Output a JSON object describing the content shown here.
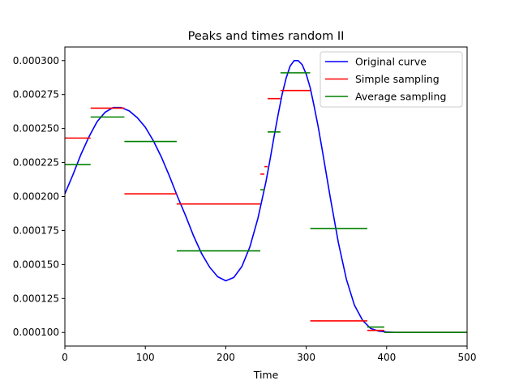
{
  "chart_data": {
    "type": "line",
    "title": "Peaks and times random II",
    "xlabel": "Time",
    "ylabel": "",
    "xlim": [
      0,
      500
    ],
    "ylim": [
      9e-05,
      0.00031
    ],
    "xticks": [
      0,
      100,
      200,
      300,
      400,
      500
    ],
    "xtick_labels": [
      "0",
      "100",
      "200",
      "300",
      "400",
      "500"
    ],
    "yticks": [
      0.0001,
      0.000125,
      0.00015,
      0.000175,
      0.0002,
      0.000225,
      0.00025,
      0.000275,
      0.0003
    ],
    "ytick_labels": [
      "0.000100",
      "0.000125",
      "0.000150",
      "0.000175",
      "0.000200",
      "0.000225",
      "0.000250",
      "0.000275",
      "0.000300"
    ],
    "grid": false,
    "legend_position": "top-right",
    "colors": {
      "original": "#0000ff",
      "simple": "#ff0000",
      "average": "#008000"
    },
    "series": [
      {
        "name": "Original curve",
        "style": "line",
        "x": [
          0,
          10,
          20,
          30,
          40,
          50,
          60,
          70,
          80,
          90,
          100,
          110,
          120,
          130,
          140,
          150,
          160,
          170,
          180,
          190,
          200,
          210,
          220,
          230,
          240,
          250,
          255,
          260,
          265,
          270,
          275,
          280,
          285,
          290,
          295,
          300,
          305,
          310,
          315,
          320,
          330,
          340,
          350,
          360,
          370,
          380,
          390,
          400,
          410,
          420,
          430,
          440,
          450,
          460,
          470,
          480,
          490,
          500
        ],
        "y": [
          0.000202,
          0.000216,
          0.000231,
          0.000244,
          0.000255,
          0.000262,
          0.0002655,
          0.0002655,
          0.000263,
          0.000258,
          0.000251,
          0.000241,
          0.000229,
          0.000215,
          0.0002,
          0.000186,
          0.000171,
          0.000158,
          0.000148,
          0.000141,
          0.000138,
          0.0001405,
          0.0001485,
          0.000163,
          0.000184,
          0.000211,
          0.000227,
          0.000244,
          0.00026,
          0.000275,
          0.000287,
          0.000296,
          0.0003,
          0.0003,
          0.000297,
          0.00029,
          0.00028,
          0.000266,
          0.000251,
          0.000234,
          0.000199,
          0.000166,
          0.000139,
          0.00012,
          0.000109,
          0.000103,
          0.000101,
          0.0001004,
          0.0001,
          0.0001,
          0.0001,
          0.0001,
          0.0001,
          0.0001,
          0.0001,
          0.0001,
          0.0001,
          0.0001
        ]
      },
      {
        "name": "Simple sampling",
        "style": "segments",
        "segments": [
          {
            "x0": 0,
            "x1": 32,
            "y": 0.000243
          },
          {
            "x0": 32,
            "x1": 74,
            "y": 0.000265
          },
          {
            "x0": 74,
            "x1": 139,
            "y": 0.000202
          },
          {
            "x0": 139,
            "x1": 243,
            "y": 0.0001945
          },
          {
            "x0": 243,
            "x1": 248,
            "y": 0.0002165
          },
          {
            "x0": 248,
            "x1": 252,
            "y": 0.000222
          },
          {
            "x0": 252,
            "x1": 268,
            "y": 0.000272
          },
          {
            "x0": 268,
            "x1": 305,
            "y": 0.000278
          },
          {
            "x0": 305,
            "x1": 376,
            "y": 0.0001085
          },
          {
            "x0": 376,
            "x1": 397,
            "y": 0.0001015
          },
          {
            "x0": 397,
            "x1": 500,
            "y": 0.0001
          }
        ]
      },
      {
        "name": "Average sampling",
        "style": "segments",
        "segments": [
          {
            "x0": 0,
            "x1": 32,
            "y": 0.0002235
          },
          {
            "x0": 32,
            "x1": 74,
            "y": 0.0002585
          },
          {
            "x0": 74,
            "x1": 139,
            "y": 0.0002405
          },
          {
            "x0": 139,
            "x1": 243,
            "y": 0.00016
          },
          {
            "x0": 243,
            "x1": 248,
            "y": 0.000205
          },
          {
            "x0": 252,
            "x1": 268,
            "y": 0.0002475
          },
          {
            "x0": 268,
            "x1": 305,
            "y": 0.000291
          },
          {
            "x0": 305,
            "x1": 376,
            "y": 0.0001765
          },
          {
            "x0": 376,
            "x1": 397,
            "y": 0.000104
          },
          {
            "x0": 397,
            "x1": 500,
            "y": 0.0001
          }
        ]
      }
    ]
  }
}
